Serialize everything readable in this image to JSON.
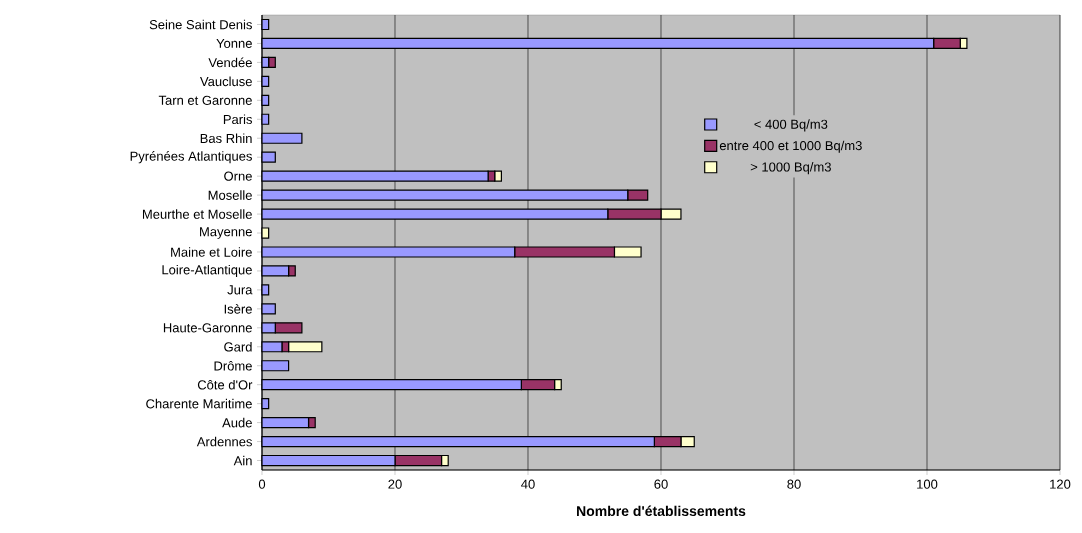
{
  "chart_data": {
    "type": "bar",
    "orientation": "horizontal",
    "stacked": true,
    "xlabel": "Nombre d'établissements",
    "categories": [
      "Seine Saint Denis",
      "Yonne",
      "Vendée",
      "Vaucluse",
      "Tarn et Garonne",
      "Paris",
      "Bas Rhin",
      "Pyrénées Atlantiques",
      "Orne",
      "Moselle",
      "Meurthe et Moselle",
      "Mayenne",
      "Maine et Loire",
      "Loire-Atlantique",
      "Jura",
      "Isère",
      "Haute-Garonne",
      "Gard",
      "Drôme",
      "Côte d'Or",
      "Charente Maritime",
      "Aude",
      "Ardennes",
      "Ain"
    ],
    "series": [
      {
        "name": "< 400 Bq/m3",
        "color": "#9999ff",
        "values": [
          1,
          101,
          1,
          1,
          1,
          1,
          6,
          2,
          34,
          55,
          52,
          0,
          38,
          4,
          1,
          2,
          2,
          3,
          4,
          39,
          1,
          7,
          59,
          20
        ]
      },
      {
        "name": "entre 400 et 1000 Bq/m3",
        "color": "#993366",
        "values": [
          0,
          4,
          1,
          0,
          0,
          0,
          0,
          0,
          1,
          3,
          8,
          0,
          15,
          1,
          0,
          0,
          4,
          1,
          0,
          5,
          0,
          1,
          4,
          7
        ]
      },
      {
        "name": "> 1000 Bq/m3",
        "color": "#ffffcc",
        "values": [
          0,
          1,
          0,
          0,
          0,
          0,
          0,
          0,
          1,
          0,
          3,
          1,
          4,
          0,
          0,
          0,
          0,
          5,
          0,
          1,
          0,
          0,
          2,
          1
        ]
      }
    ],
    "xlim": [
      0,
      120
    ],
    "xticks": [
      0,
      20,
      40,
      60,
      80,
      100,
      120
    ],
    "grid": "x",
    "legend": "right"
  }
}
